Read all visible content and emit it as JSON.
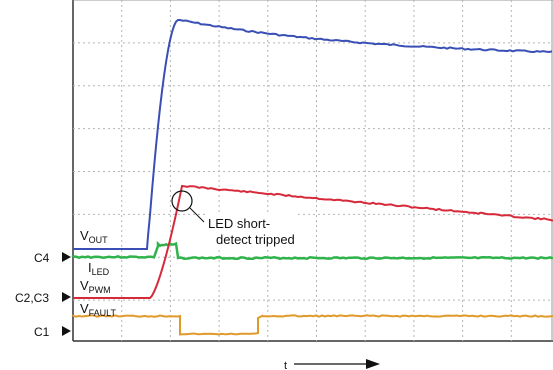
{
  "chart_data": {
    "type": "line",
    "title": "",
    "xlabel": "t",
    "ylabel": "",
    "grid": true,
    "grid_divisions": {
      "x": 10,
      "y": 8
    },
    "series": [
      {
        "name": "V_OUT",
        "channel": "C1",
        "color": "#3a4fb5"
      },
      {
        "name": "I_LED",
        "channel": "C4",
        "color": "#2fb34a"
      },
      {
        "name": "V_PWM",
        "channel": "C2,C3",
        "color": "#d62a3a"
      },
      {
        "name": "V_FAULT",
        "channel": "C1",
        "color": "#e09a2b"
      }
    ],
    "annotation": {
      "line1": "LED short-",
      "line2": "detect tripped"
    },
    "channel_markers": [
      "C4",
      "C2,C3",
      "C1"
    ]
  },
  "labels": {
    "vout_main": "V",
    "vout_sub": "OUT",
    "iled_main": "I",
    "iled_sub": "LED",
    "vpwm_main": "V",
    "vpwm_sub": "PWM",
    "vfault_main": "V",
    "vfault_sub": "FAULT"
  }
}
